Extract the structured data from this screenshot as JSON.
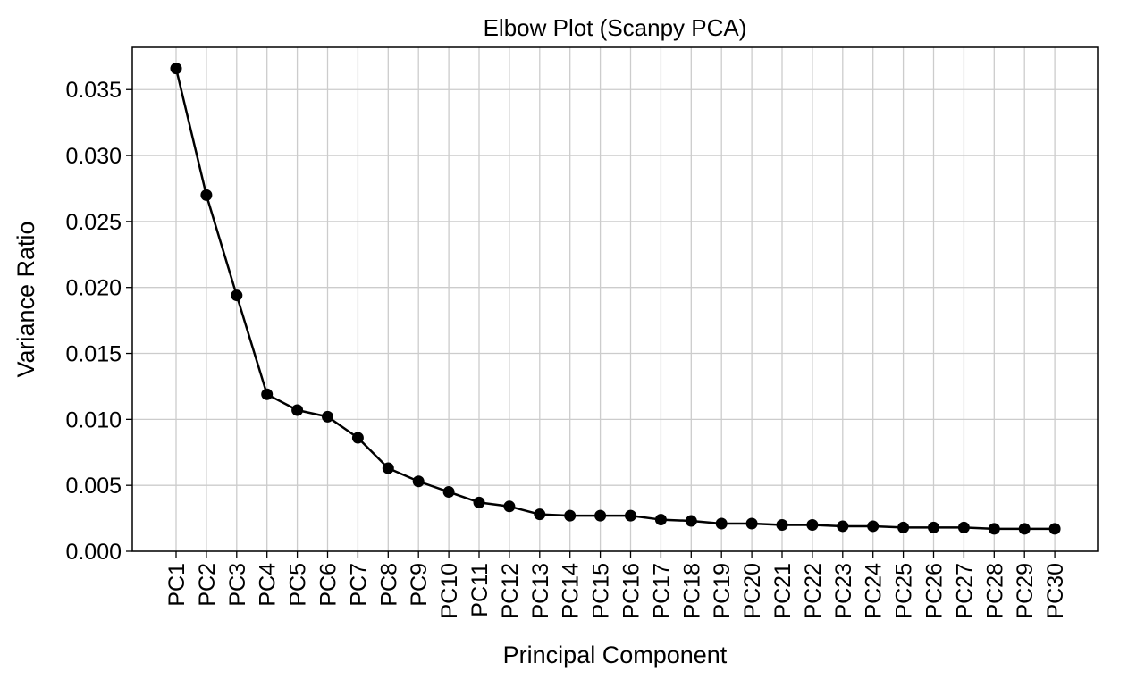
{
  "chart_data": {
    "type": "line",
    "title": "Elbow Plot (Scanpy PCA)",
    "xlabel": "Principal Component",
    "ylabel": "Variance Ratio",
    "categories": [
      "PC1",
      "PC2",
      "PC3",
      "PC4",
      "PC5",
      "PC6",
      "PC7",
      "PC8",
      "PC9",
      "PC10",
      "PC11",
      "PC12",
      "PC13",
      "PC14",
      "PC15",
      "PC16",
      "PC17",
      "PC18",
      "PC19",
      "PC20",
      "PC21",
      "PC22",
      "PC23",
      "PC24",
      "PC25",
      "PC26",
      "PC27",
      "PC28",
      "PC29",
      "PC30"
    ],
    "values": [
      0.0366,
      0.027,
      0.0194,
      0.0119,
      0.0107,
      0.0102,
      0.0086,
      0.0063,
      0.0053,
      0.0045,
      0.0037,
      0.0034,
      0.0028,
      0.0027,
      0.0027,
      0.0027,
      0.0024,
      0.0023,
      0.0021,
      0.0021,
      0.002,
      0.002,
      0.0019,
      0.0019,
      0.0018,
      0.0018,
      0.0018,
      0.0017,
      0.0017,
      0.0017
    ],
    "ylim": [
      0,
      0.0382
    ],
    "yticks": [
      0.0,
      0.005,
      0.01,
      0.015,
      0.02,
      0.025,
      0.03,
      0.035
    ],
    "ytick_labels": [
      "0.000",
      "0.005",
      "0.010",
      "0.015",
      "0.020",
      "0.025",
      "0.030",
      "0.035"
    ],
    "grid": true,
    "legend": "none",
    "colors": {
      "line": "#000000",
      "marker": "#000000",
      "grid": "#cccccc"
    }
  }
}
